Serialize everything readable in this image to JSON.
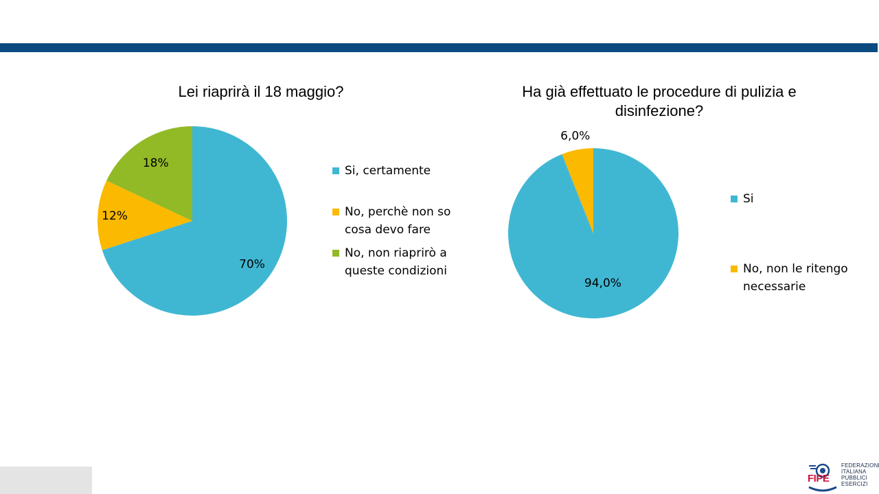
{
  "colors": {
    "header_bar": "#0b4a80",
    "cyan": "#40b7d2",
    "yellow": "#fbb900",
    "green": "#92b926"
  },
  "chart_data": [
    {
      "type": "pie",
      "title": "Lei riaprirà il 18 maggio?",
      "legend_position": "right",
      "slices": [
        {
          "label": "Si, certamente",
          "value": 70,
          "display": "70%",
          "color": "#40b7d2"
        },
        {
          "label": "No, perchè non so cosa devo fare",
          "value": 12,
          "display": "12%",
          "color": "#fbb900"
        },
        {
          "label": "No, non riaprirò a queste condizioni",
          "value": 18,
          "display": "18%",
          "color": "#92b926"
        }
      ]
    },
    {
      "type": "pie",
      "title": "Ha già effettuato le procedure di pulizia e disinfezione?",
      "legend_position": "right",
      "slices": [
        {
          "label": "Si",
          "value": 94.0,
          "display": "94,0%",
          "color": "#40b7d2"
        },
        {
          "label": "No, non le ritengo necessarie",
          "value": 6.0,
          "display": "6,0%",
          "color": "#fbb900"
        }
      ]
    }
  ],
  "logo": {
    "word": "FIPE",
    "lines": [
      "FEDERAZIONE",
      "ITALIANA",
      "PUBBLICI",
      "ESERCIZI"
    ],
    "icon": "fipe-emblem-icon"
  }
}
